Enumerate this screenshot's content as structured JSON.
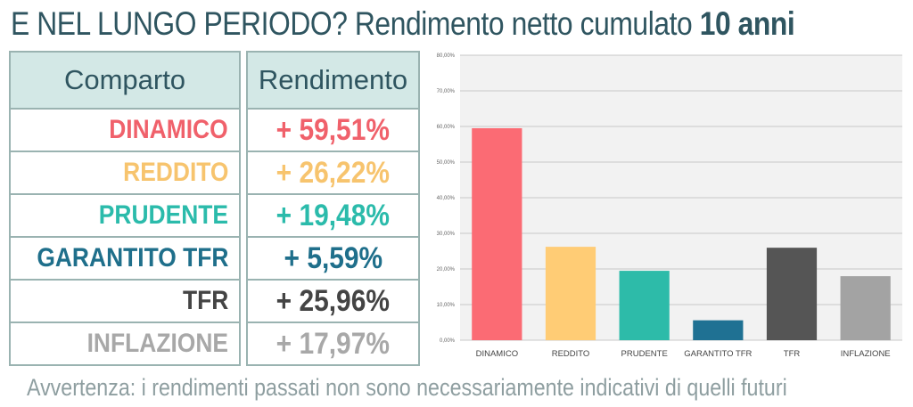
{
  "title": {
    "part1": "E NEL LUNGO PERIODO?",
    "part2": "Rendimento netto cumulato",
    "part3": "10 anni"
  },
  "table": {
    "header_left": "Comparto",
    "header_right": "Rendimento",
    "rows": [
      {
        "name": "DINAMICO",
        "value": "+ 59,51%",
        "color": "#f0616b"
      },
      {
        "name": "REDDITO",
        "value": "+ 26,22%",
        "color": "#f7c46e"
      },
      {
        "name": "PRUDENTE",
        "value": "+ 19,48%",
        "color": "#2bbbab"
      },
      {
        "name": "GARANTITO TFR",
        "value": "+ 5,59%",
        "color": "#1f6f8b"
      },
      {
        "name": "TFR",
        "value": "+ 25,96%",
        "color": "#444444"
      },
      {
        "name": "INFLAZIONE",
        "value": "+ 17,97%",
        "color": "#a8a8a8"
      }
    ]
  },
  "chart_data": {
    "type": "bar",
    "categories": [
      "DINAMICO",
      "REDDITO",
      "PRUDENTE",
      "GARANTITO TFR",
      "TFR",
      "INFLAZIONE"
    ],
    "values": [
      59.51,
      26.22,
      19.48,
      5.59,
      25.96,
      17.97
    ],
    "colors": [
      "#fb6b74",
      "#ffcc75",
      "#2dbba9",
      "#1f7193",
      "#555555",
      "#a3a3a3"
    ],
    "ylim": [
      0,
      80
    ],
    "yticks": [
      "0,00%",
      "10,00%",
      "20,00%",
      "30,00%",
      "40,00%",
      "50,00%",
      "60,00%",
      "70,00%",
      "80,00%"
    ],
    "grid": true,
    "title": "",
    "xlabel": "",
    "ylabel": ""
  },
  "footer": "Avvertenza: i rendimenti passati non sono necessariamente indicativi di quelli futuri"
}
